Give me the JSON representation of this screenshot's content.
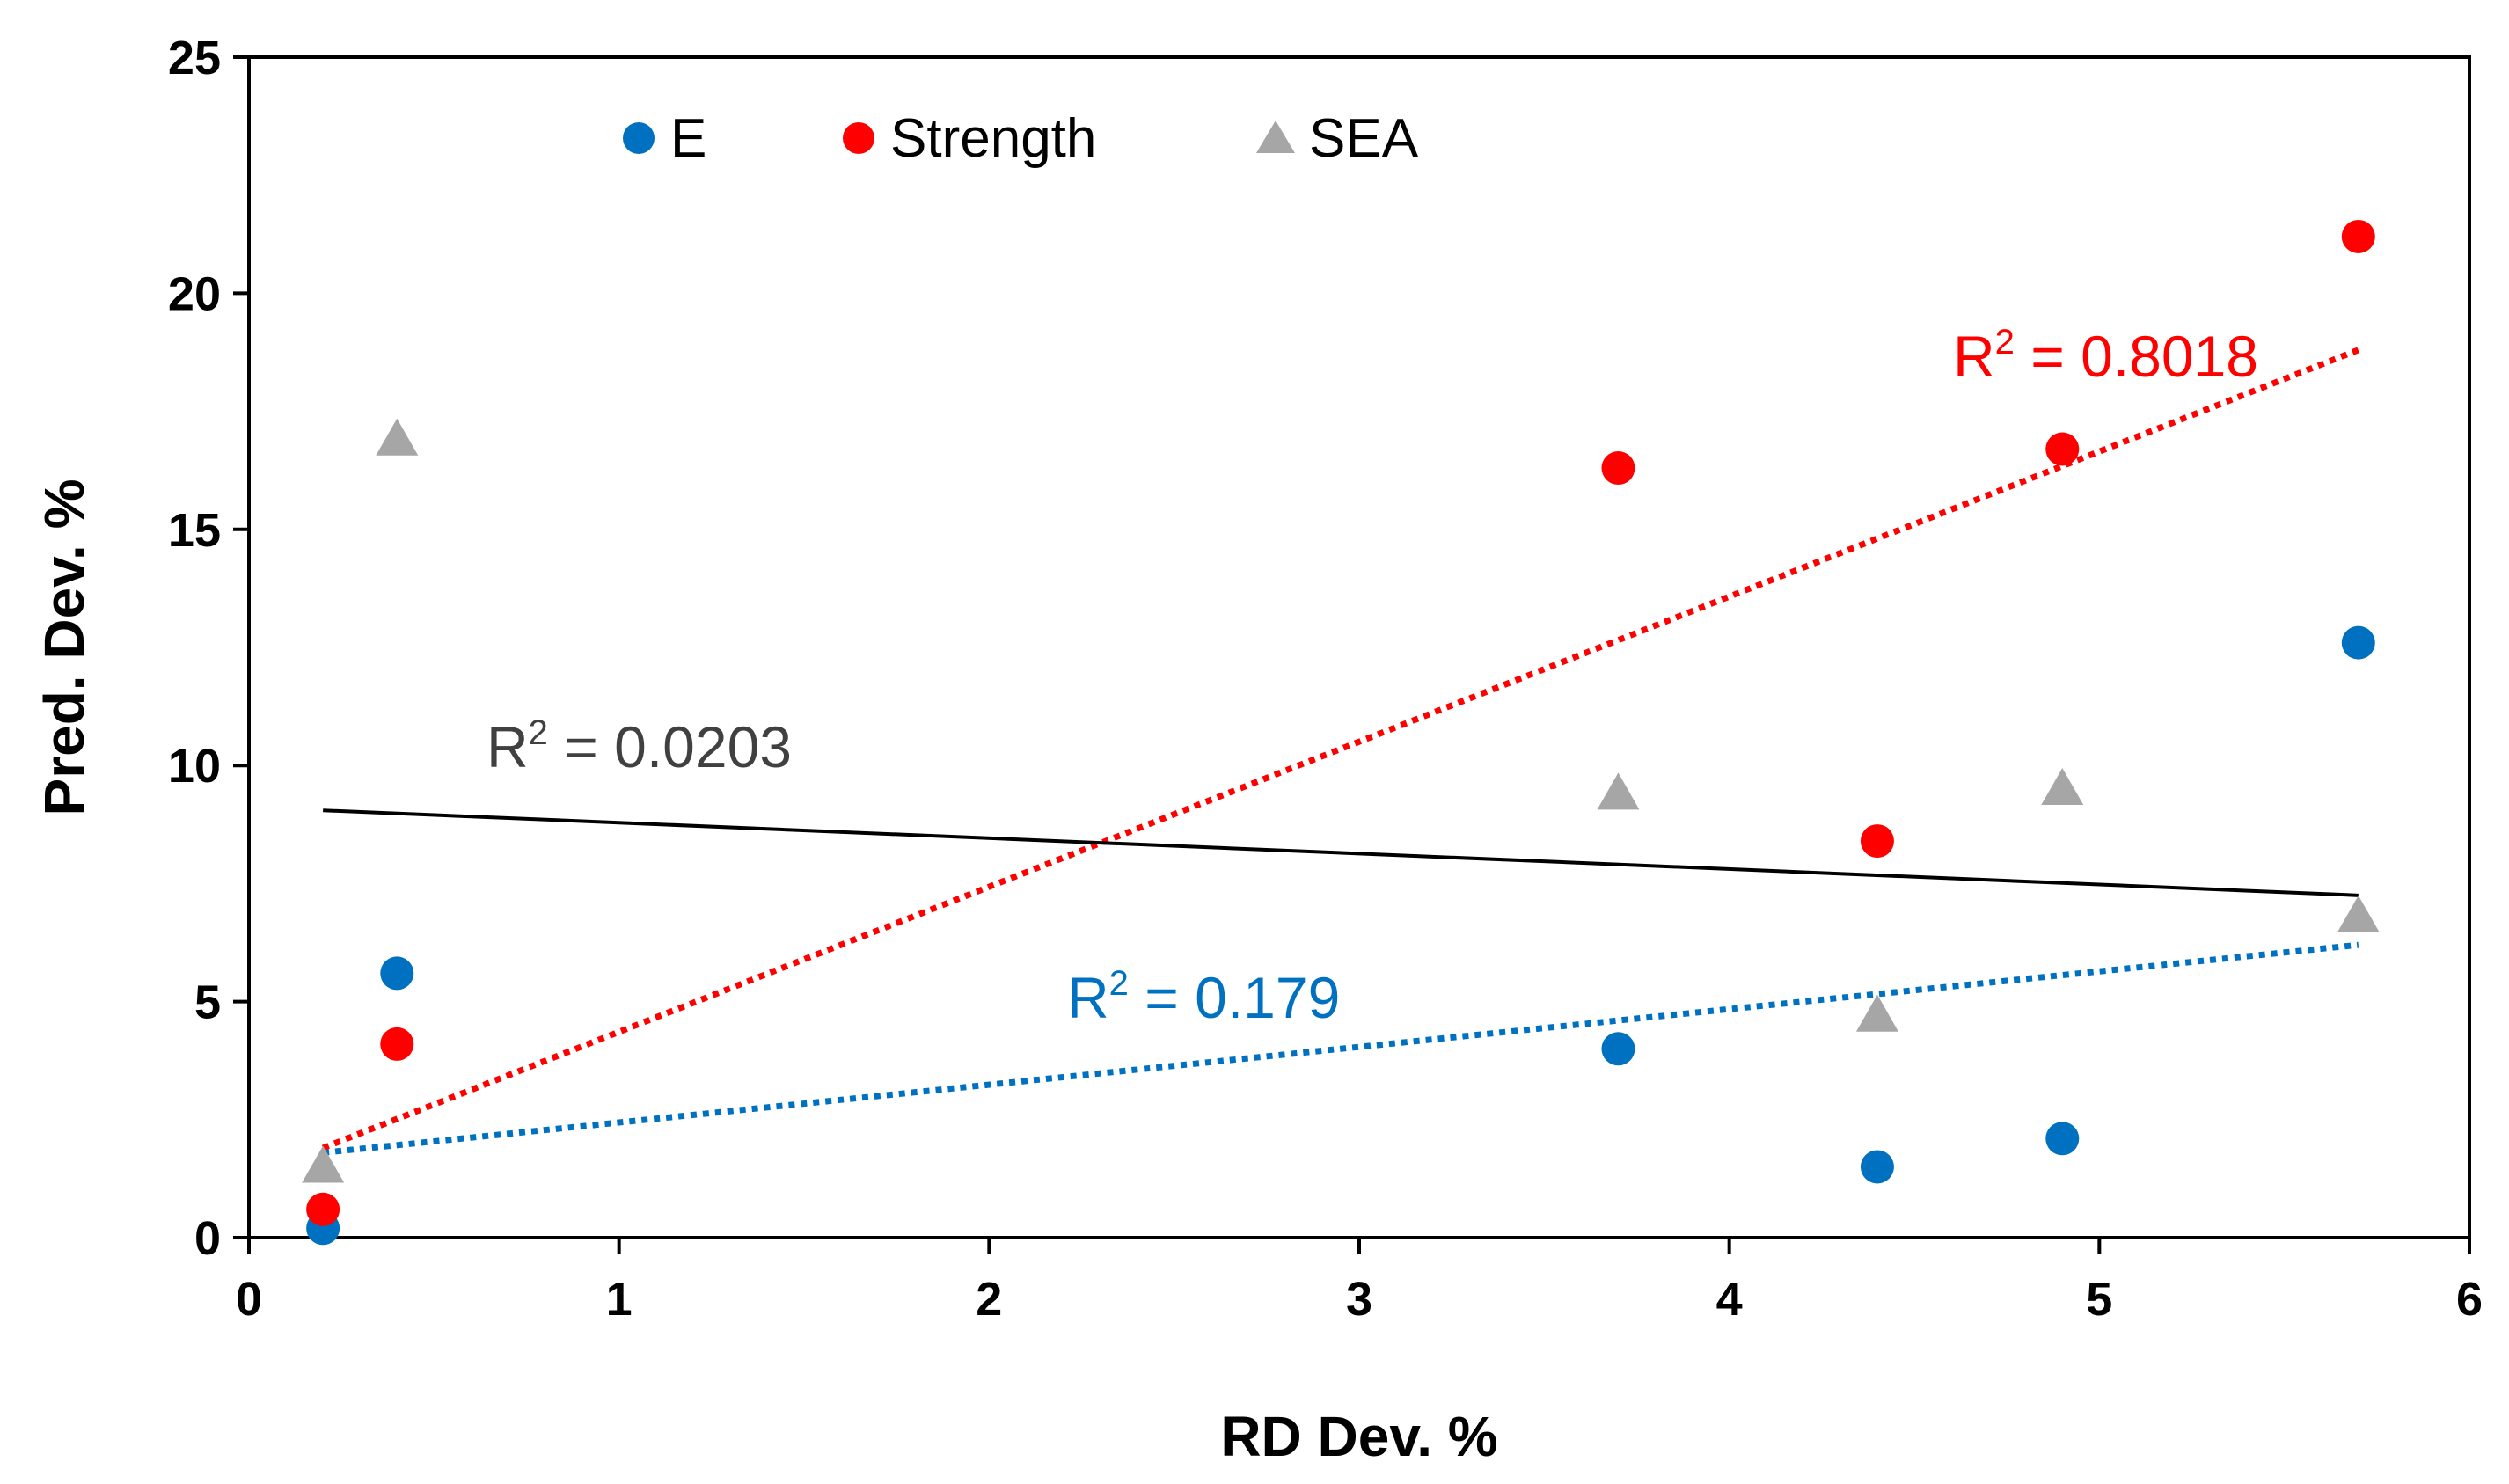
{
  "chart_data": {
    "type": "scatter",
    "title": "",
    "xlabel": "RD Dev. %",
    "ylabel": "Pred. Dev. %",
    "xlim": [
      0,
      6
    ],
    "ylim": [
      0,
      25
    ],
    "xticks": [
      "0",
      "1",
      "2",
      "3",
      "4",
      "5",
      "6"
    ],
    "yticks": [
      "0",
      "5",
      "10",
      "15",
      "20",
      "25"
    ],
    "legend_position": "top-left",
    "series": [
      {
        "name": "E",
        "marker": "circle",
        "color": "#0070C0",
        "x": [
          0.2,
          0.4,
          3.7,
          4.4,
          4.9,
          5.7
        ],
        "y": [
          0.2,
          5.6,
          4.0,
          1.5,
          2.1,
          12.6
        ],
        "trendline": {
          "style": "dotted",
          "color": "#0070C0",
          "x": [
            0.2,
            5.7
          ],
          "y": [
            1.8,
            6.2
          ],
          "r2_label": "R",
          "r2_sup": "2",
          "r2_value": " = 0.179"
        }
      },
      {
        "name": "Strength",
        "marker": "circle",
        "color": "#FF0000",
        "x": [
          0.2,
          0.4,
          3.7,
          4.4,
          4.9,
          5.7
        ],
        "y": [
          0.6,
          4.1,
          16.3,
          8.4,
          16.7,
          21.2
        ],
        "trendline": {
          "style": "dotted",
          "color": "#FF0000",
          "x": [
            0.2,
            5.7
          ],
          "y": [
            1.9,
            18.8
          ],
          "r2_label": "R",
          "r2_sup": "2",
          "r2_value": " = 0.8018"
        }
      },
      {
        "name": "SEA",
        "marker": "triangle",
        "color": "#A6A6A6",
        "x": [
          0.2,
          0.4,
          3.7,
          4.4,
          4.9,
          5.7
        ],
        "y": [
          1.5,
          16.9,
          9.4,
          4.7,
          9.5,
          6.8
        ],
        "trendline": {
          "style": "solid",
          "color": "#000000",
          "x": [
            0.2,
            5.7
          ],
          "y": [
            9.05,
            7.25
          ],
          "r2_label": "R",
          "r2_sup": "2",
          "r2_value": " = 0.0203"
        }
      }
    ],
    "annotation_colors": {
      "E": "#0070C0",
      "Strength": "#FF0000",
      "SEA": "#404040"
    }
  }
}
